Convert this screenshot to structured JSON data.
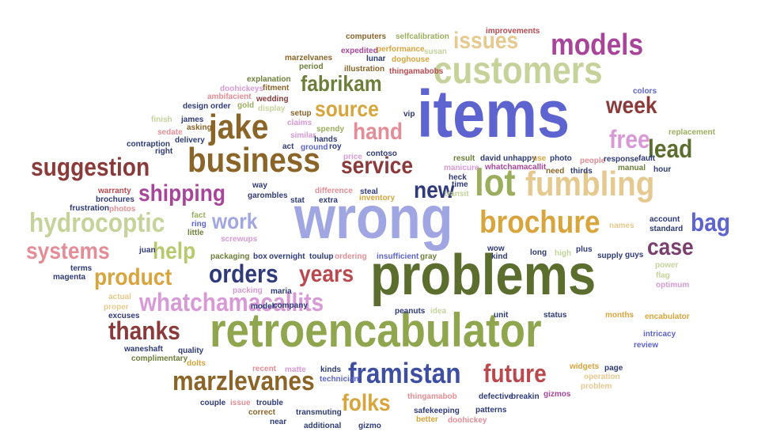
{
  "palette": {
    "olive": "#6B7F3A",
    "sage": "#9BAE5D",
    "pale_olive": "#C5D39A",
    "dark_olive": "#5C6E2E",
    "brown": "#8B6428",
    "gold": "#D8A43C",
    "tan": "#E6C98E",
    "sand": "#E6C98E",
    "maroon": "#8B3A3A",
    "red": "#B9484F",
    "pink": "#E58D96",
    "purple": "#A8459A",
    "orchid": "#D89AD6",
    "navy": "#2F3A7A",
    "blue": "#5D63CF",
    "lavender": "#A0A6E2",
    "plum": "#7B3F6F"
  },
  "words": [
    {
      "id": "problems",
      "text": "problems",
      "color": "#5C6E2E"
    },
    {
      "id": "items",
      "text": "items",
      "color": "#5D63CF"
    },
    {
      "id": "wrong",
      "text": "wrong",
      "color": "#A0A6E2"
    },
    {
      "id": "retroencabulator",
      "text": "retroencabulator",
      "color": "#8FA54E"
    },
    {
      "id": "customers",
      "text": "customers",
      "color": "#C5D39A"
    },
    {
      "id": "business",
      "text": "business",
      "color": "#8B6428"
    },
    {
      "id": "fumbling",
      "text": "fumbling",
      "color": "#E6C98E"
    },
    {
      "id": "lot",
      "text": "lot",
      "color": "#9BAE5D"
    },
    {
      "id": "brochure",
      "text": "brochure",
      "color": "#D8A43C"
    },
    {
      "id": "jake",
      "text": "jake",
      "color": "#8B6428"
    },
    {
      "id": "framistan",
      "text": "framistan",
      "color": "#3E4EA0"
    },
    {
      "id": "marzlevanes",
      "text": "marzlevanes",
      "color": "#8B6428"
    },
    {
      "id": "whatchamacallits",
      "text": "whatchamacallits",
      "color": "#D89AD6"
    },
    {
      "id": "hydrocoptic",
      "text": "hydrocoptic",
      "color": "#C5D39A"
    },
    {
      "id": "suggestion",
      "text": "suggestion",
      "color": "#8B3A3A"
    },
    {
      "id": "models",
      "text": "models",
      "color": "#A8459A"
    },
    {
      "id": "issues",
      "text": "issues",
      "color": "#E6C98E"
    },
    {
      "id": "fabrikam",
      "text": "fabrikam",
      "color": "#6B7F3A"
    },
    {
      "id": "source",
      "text": "source",
      "color": "#D8A43C"
    },
    {
      "id": "hand",
      "text": "hand",
      "color": "#E58D96"
    },
    {
      "id": "service",
      "text": "service",
      "color": "#8B3A3A"
    },
    {
      "id": "shipping",
      "text": "shipping",
      "color": "#A8459A"
    },
    {
      "id": "week",
      "text": "week",
      "color": "#8B3A3A"
    },
    {
      "id": "free",
      "text": "free",
      "color": "#D89AD6"
    },
    {
      "id": "lead",
      "text": "lead",
      "color": "#5C6E2E"
    },
    {
      "id": "new",
      "text": "new",
      "color": "#2F3A7A"
    },
    {
      "id": "work",
      "text": "work",
      "color": "#A0A6E2"
    },
    {
      "id": "systems",
      "text": "systems",
      "color": "#E58D96"
    },
    {
      "id": "help",
      "text": "help",
      "color": "#B6C96C"
    },
    {
      "id": "product",
      "text": "product",
      "color": "#D8A43C"
    },
    {
      "id": "orders",
      "text": "orders",
      "color": "#2F3A7A"
    },
    {
      "id": "years",
      "text": "years",
      "color": "#B9484F"
    },
    {
      "id": "bag",
      "text": "bag",
      "color": "#5D63CF"
    },
    {
      "id": "case",
      "text": "case",
      "color": "#7B3F6F"
    },
    {
      "id": "thanks",
      "text": "thanks",
      "color": "#8B3A3A"
    },
    {
      "id": "future",
      "text": "future",
      "color": "#B9484F"
    },
    {
      "id": "folks",
      "text": "folks",
      "color": "#D8A43C"
    },
    {
      "id": "computers",
      "text": "computers",
      "color": "#8B6428"
    },
    {
      "id": "selfcalibration",
      "text": "selfcalibration",
      "color": "#9BAE5D"
    },
    {
      "id": "improvements",
      "text": "improvements",
      "color": "#B9484F"
    },
    {
      "id": "expedited",
      "text": "expedited",
      "color": "#A8459A"
    },
    {
      "id": "performance",
      "text": "performance",
      "color": "#D8A43C"
    },
    {
      "id": "susan",
      "text": "susan",
      "color": "#C5D39A"
    },
    {
      "id": "marzelvanes",
      "text": "marzelvanes",
      "color": "#8B6428"
    },
    {
      "id": "lunar",
      "text": "lunar",
      "color": "#2F3A7A"
    },
    {
      "id": "doghouse",
      "text": "doghouse",
      "color": "#D8A43C"
    },
    {
      "id": "period",
      "text": "period",
      "color": "#6B7F3A"
    },
    {
      "id": "illustration",
      "text": "illustration",
      "color": "#8B6428"
    },
    {
      "id": "thingamabobs",
      "text": "thingamabobs",
      "color": "#B9484F"
    },
    {
      "id": "explanation",
      "text": "explanation",
      "color": "#6B7F3A"
    },
    {
      "id": "doohickeys",
      "text": "doohickeys",
      "color": "#D89AD6"
    },
    {
      "id": "fitment",
      "text": "fitment",
      "color": "#8B6428"
    },
    {
      "id": "ambifacient",
      "text": "ambifacient",
      "color": "#E58D96"
    },
    {
      "id": "wedding",
      "text": "wedding",
      "color": "#8B3A3A"
    },
    {
      "id": "vip",
      "text": "vip",
      "color": "#2F3A7A"
    },
    {
      "id": "colors",
      "text": "colors",
      "color": "#5D63CF"
    },
    {
      "id": "design",
      "text": "design",
      "color": "#2F3A7A"
    },
    {
      "id": "order",
      "text": "order",
      "color": "#2F3A7A"
    },
    {
      "id": "gold",
      "text": "gold",
      "color": "#9BAE5D"
    },
    {
      "id": "display",
      "text": "display",
      "color": "#C5D39A"
    },
    {
      "id": "setup",
      "text": "setup",
      "color": "#8B6428"
    },
    {
      "id": "claims",
      "text": "claims",
      "color": "#D89AD6"
    },
    {
      "id": "finish",
      "text": "finish",
      "color": "#C5D39A"
    },
    {
      "id": "james",
      "text": "james",
      "color": "#2F3A7A"
    },
    {
      "id": "sedate",
      "text": "sedate",
      "color": "#E58D96"
    },
    {
      "id": "asking",
      "text": "asking",
      "color": "#8B6428"
    },
    {
      "id": "contraption",
      "text": "contraption",
      "color": "#2F3A7A"
    },
    {
      "id": "delivery",
      "text": "delivery",
      "color": "#2F3A7A"
    },
    {
      "id": "right",
      "text": "right",
      "color": "#2F3A7A"
    },
    {
      "id": "similar",
      "text": "similar",
      "color": "#D89AD6"
    },
    {
      "id": "spendy",
      "text": "spendy",
      "color": "#9BAE5D"
    },
    {
      "id": "hands",
      "text": "hands",
      "color": "#2F3A7A"
    },
    {
      "id": "act",
      "text": "act",
      "color": "#2F3A7A"
    },
    {
      "id": "ground",
      "text": "ground",
      "color": "#5D63CF"
    },
    {
      "id": "roy",
      "text": "roy",
      "color": "#2F3A7A"
    },
    {
      "id": "result",
      "text": "result",
      "color": "#6B7F3A"
    },
    {
      "id": "david",
      "text": "david",
      "color": "#2F3A7A"
    },
    {
      "id": "unhappy",
      "text": "unhappy",
      "color": "#2F3A7A"
    },
    {
      "id": "photo",
      "text": "photo",
      "color": "#2F3A7A"
    },
    {
      "id": "people",
      "text": "people",
      "color": "#E58D96"
    },
    {
      "id": "fault",
      "text": "fault",
      "color": "#2F3A7A"
    },
    {
      "id": "replacement",
      "text": "replacement",
      "color": "#9BAE5D"
    },
    {
      "id": "response",
      "text": "response",
      "color": "#2F3A7A"
    },
    {
      "id": "manual",
      "text": "manual",
      "color": "#6B7F3A"
    },
    {
      "id": "hour",
      "text": "hour",
      "color": "#2F3A7A"
    },
    {
      "id": "price",
      "text": "price",
      "color": "#D89AD6"
    },
    {
      "id": "contoso",
      "text": "contoso",
      "color": "#2F3A7A"
    },
    {
      "id": "use",
      "text": "use",
      "color": "#D8A43C"
    },
    {
      "id": "manicure",
      "text": "manicure",
      "color": "#D89AD6"
    },
    {
      "id": "whatchamacallit",
      "text": "whatchamacallit",
      "color": "#A8459A"
    },
    {
      "id": "need",
      "text": "need",
      "color": "#8B6428"
    },
    {
      "id": "thirds",
      "text": "thirds",
      "color": "#2F3A7A"
    },
    {
      "id": "time",
      "text": "time",
      "color": "#2F3A7A"
    },
    {
      "id": "heck",
      "text": "heck",
      "color": "#2F3A7A"
    },
    {
      "id": "warranty",
      "text": "warranty",
      "color": "#B9484F"
    },
    {
      "id": "brochures",
      "text": "brochures",
      "color": "#2F3A7A"
    },
    {
      "id": "frustration",
      "text": "frustration",
      "color": "#2F3A7A"
    },
    {
      "id": "photos",
      "text": "photos",
      "color": "#E58D96"
    },
    {
      "id": "way",
      "text": "way",
      "color": "#2F3A7A"
    },
    {
      "id": "garombles",
      "text": "garombles",
      "color": "#2F3A7A"
    },
    {
      "id": "stat",
      "text": "stat",
      "color": "#2F3A7A"
    },
    {
      "id": "difference",
      "text": "difference",
      "color": "#E58D96"
    },
    {
      "id": "inventory",
      "text": "inventory",
      "color": "#D8A43C"
    },
    {
      "id": "steal",
      "text": "steal",
      "color": "#2F3A7A"
    },
    {
      "id": "transit",
      "text": "transit",
      "color": "#C5D39A"
    },
    {
      "id": "extra",
      "text": "extra",
      "color": "#2F3A7A"
    },
    {
      "id": "fact",
      "text": "fact",
      "color": "#9BAE5D"
    },
    {
      "id": "ring",
      "text": "ring",
      "color": "#5D63CF"
    },
    {
      "id": "little",
      "text": "little",
      "color": "#6B7F3A"
    },
    {
      "id": "screwups",
      "text": "screwups",
      "color": "#D89AD6"
    },
    {
      "id": "account",
      "text": "account",
      "color": "#2F3A7A"
    },
    {
      "id": "standard",
      "text": "standard",
      "color": "#2F3A7A"
    },
    {
      "id": "names",
      "text": "names",
      "color": "#E6C98E"
    },
    {
      "id": "packaging",
      "text": "packaging",
      "color": "#6B7F3A"
    },
    {
      "id": "box",
      "text": "box",
      "color": "#2F3A7A"
    },
    {
      "id": "overnight",
      "text": "overnight",
      "color": "#2F3A7A"
    },
    {
      "id": "toulup",
      "text": "toulup",
      "color": "#2F3A7A"
    },
    {
      "id": "ordering",
      "text": "ordering",
      "color": "#E58D96"
    },
    {
      "id": "insufficient",
      "text": "insufficient",
      "color": "#5D63CF"
    },
    {
      "id": "gray",
      "text": "gray",
      "color": "#6B7F3A"
    },
    {
      "id": "wow",
      "text": "wow",
      "color": "#2F3A7A"
    },
    {
      "id": "kind",
      "text": "kind",
      "color": "#2F3A7A"
    },
    {
      "id": "long",
      "text": "long",
      "color": "#2F3A7A"
    },
    {
      "id": "high",
      "text": "high",
      "color": "#C5D39A"
    },
    {
      "id": "plus",
      "text": "plus",
      "color": "#2F3A7A"
    },
    {
      "id": "supply",
      "text": "supply",
      "color": "#2F3A7A"
    },
    {
      "id": "guys",
      "text": "guys",
      "color": "#2F3A7A"
    },
    {
      "id": "juan",
      "text": "juan",
      "color": "#2F3A7A"
    },
    {
      "id": "terms",
      "text": "terms",
      "color": "#2F3A7A"
    },
    {
      "id": "magenta",
      "text": "magenta",
      "color": "#2F3A7A"
    },
    {
      "id": "power",
      "text": "power",
      "color": "#C5D39A"
    },
    {
      "id": "flag",
      "text": "flag",
      "color": "#C5D39A"
    },
    {
      "id": "optimum",
      "text": "optimum",
      "color": "#D89AD6"
    },
    {
      "id": "packing",
      "text": "packing",
      "color": "#D89AD6"
    },
    {
      "id": "maria",
      "text": "maria",
      "color": "#2F3A7A"
    },
    {
      "id": "model",
      "text": "model",
      "color": "#2F3A7A"
    },
    {
      "id": "company",
      "text": "company",
      "color": "#2F3A7A"
    },
    {
      "id": "actual",
      "text": "actual",
      "color": "#E6C98E"
    },
    {
      "id": "proper",
      "text": "proper",
      "color": "#E6C98E"
    },
    {
      "id": "excuses",
      "text": "excuses",
      "color": "#2F3A7A"
    },
    {
      "id": "peanuts",
      "text": "peanuts",
      "color": "#2F3A7A"
    },
    {
      "id": "idea",
      "text": "idea",
      "color": "#C5D39A"
    },
    {
      "id": "unit",
      "text": "unit",
      "color": "#2F3A7A"
    },
    {
      "id": "status",
      "text": "status",
      "color": "#2F3A7A"
    },
    {
      "id": "months",
      "text": "months",
      "color": "#D8A43C"
    },
    {
      "id": "encabulator",
      "text": "encabulator",
      "color": "#D8A43C"
    },
    {
      "id": "intricacy",
      "text": "intricacy",
      "color": "#5D63CF"
    },
    {
      "id": "review",
      "text": "review",
      "color": "#5D63CF"
    },
    {
      "id": "waneshaft",
      "text": "waneshaft",
      "color": "#2F3A7A"
    },
    {
      "id": "quality",
      "text": "quality",
      "color": "#2F3A7A"
    },
    {
      "id": "complimentary",
      "text": "complimentary",
      "color": "#6B7F3A"
    },
    {
      "id": "dolts",
      "text": "dolts",
      "color": "#D8A43C"
    },
    {
      "id": "recent",
      "text": "recent",
      "color": "#E58D96"
    },
    {
      "id": "matte",
      "text": "matte",
      "color": "#D89AD6"
    },
    {
      "id": "kinds",
      "text": "kinds",
      "color": "#2F3A7A"
    },
    {
      "id": "widgets",
      "text": "widgets",
      "color": "#D8A43C"
    },
    {
      "id": "page",
      "text": "page",
      "color": "#2F3A7A"
    },
    {
      "id": "operation",
      "text": "operation",
      "color": "#E6C98E"
    },
    {
      "id": "problem",
      "text": "problem",
      "color": "#E6C98E"
    },
    {
      "id": "technician",
      "text": "technician",
      "color": "#5D63CF"
    },
    {
      "id": "thingamabob",
      "text": "thingamabob",
      "color": "#E58D96"
    },
    {
      "id": "defective",
      "text": "defective",
      "color": "#2F3A7A"
    },
    {
      "id": "breakin",
      "text": "breakin",
      "color": "#2F3A7A"
    },
    {
      "id": "gizmos",
      "text": "gizmos",
      "color": "#A8459A"
    },
    {
      "id": "couple",
      "text": "couple",
      "color": "#2F3A7A"
    },
    {
      "id": "issue",
      "text": "issue",
      "color": "#E58D96"
    },
    {
      "id": "trouble",
      "text": "trouble",
      "color": "#2F3A7A"
    },
    {
      "id": "safekeeping",
      "text": "safekeeping",
      "color": "#2F3A7A"
    },
    {
      "id": "patterns",
      "text": "patterns",
      "color": "#2F3A7A"
    },
    {
      "id": "correct",
      "text": "correct",
      "color": "#8B6428"
    },
    {
      "id": "transmuting",
      "text": "transmuting",
      "color": "#2F3A7A"
    },
    {
      "id": "better",
      "text": "better",
      "color": "#D8A43C"
    },
    {
      "id": "doohickey",
      "text": "doohickey",
      "color": "#E58D96"
    },
    {
      "id": "near",
      "text": "near",
      "color": "#2F3A7A"
    },
    {
      "id": "additional",
      "text": "additional",
      "color": "#2F3A7A"
    },
    {
      "id": "gizmo",
      "text": "gizmo",
      "color": "#2F3A7A"
    }
  ]
}
